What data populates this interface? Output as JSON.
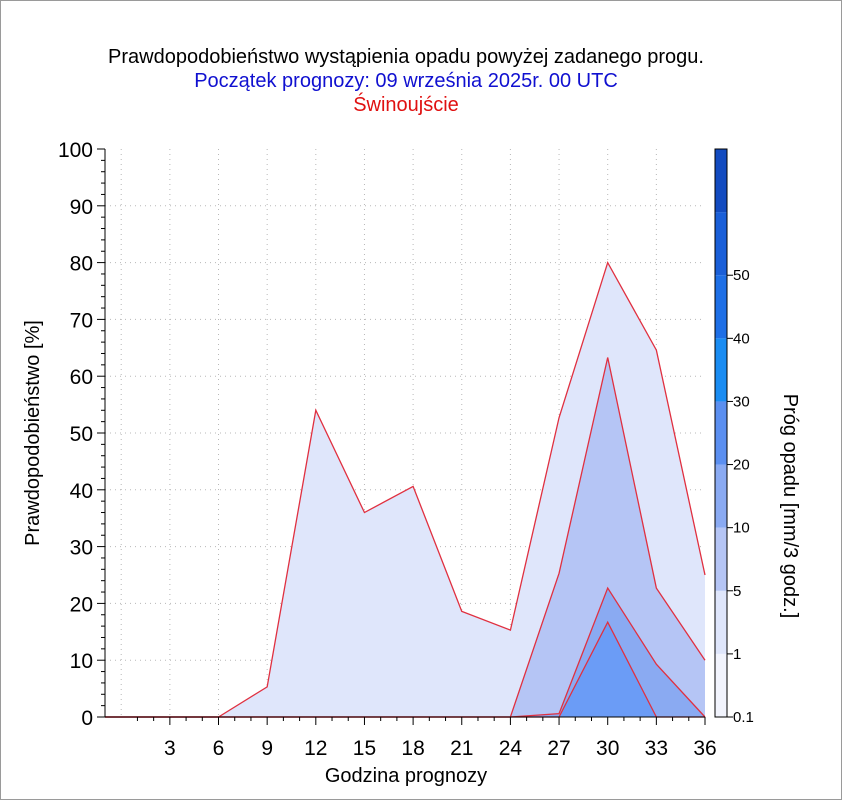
{
  "chart_data": {
    "type": "area",
    "title": "Prawdopodobieństwo wystąpienia opadu powyżej zadanego progu.",
    "subtitle": "Początek prognozy: 09 września 2025r. 00 UTC",
    "location": "Świnoujście",
    "xlabel": "Godzina prognozy",
    "ylabel": "Prawdopodobieństwo [%]",
    "xlim": [
      -1,
      36
    ],
    "ylim": [
      0,
      100
    ],
    "x_ticks": [
      3,
      6,
      9,
      12,
      15,
      18,
      21,
      24,
      27,
      30,
      33,
      36
    ],
    "y_ticks": [
      0,
      10,
      20,
      30,
      40,
      50,
      60,
      70,
      80,
      90,
      100
    ],
    "grid": true,
    "x": [
      -1,
      0,
      3,
      6,
      9,
      12,
      15,
      18,
      21,
      24,
      27,
      30,
      33,
      36
    ],
    "series": [
      {
        "threshold": "0.1",
        "color": "#dfe6fb",
        "values": [
          0,
          0,
          0,
          0,
          5.3,
          54,
          36,
          40.6,
          18.6,
          15.3,
          52.7,
          80,
          64.6,
          25
        ]
      },
      {
        "threshold": "1",
        "color": "#b5c5f5",
        "values": [
          0,
          0,
          0,
          0,
          0,
          0,
          0,
          0,
          0,
          0,
          25.3,
          63.3,
          22.7,
          10
        ]
      },
      {
        "threshold": "5",
        "color": "#8aaaf2",
        "values": [
          0,
          0,
          0,
          0,
          0,
          0,
          0,
          0,
          0,
          0,
          0.6,
          22.7,
          9.3,
          0
        ]
      },
      {
        "threshold": "10",
        "color": "#6b9cf6",
        "values": [
          0,
          0,
          0,
          0,
          0,
          0,
          0,
          0,
          0,
          0,
          0,
          16.7,
          0,
          0
        ]
      }
    ],
    "colorbar": {
      "label": "Próg opadu [mm/3 godz.]",
      "tick_labels": [
        "0.1",
        "1",
        "5",
        "10",
        "20",
        "30",
        "40",
        "50"
      ],
      "colors": [
        "#f2f4fd",
        "#dfe6fb",
        "#b5c5f5",
        "#8aaaf2",
        "#5b8ff0",
        "#1a8cf2",
        "#1e6fe6",
        "#1a5fd8",
        "#124bc0"
      ]
    },
    "line_color": "#e03040"
  }
}
